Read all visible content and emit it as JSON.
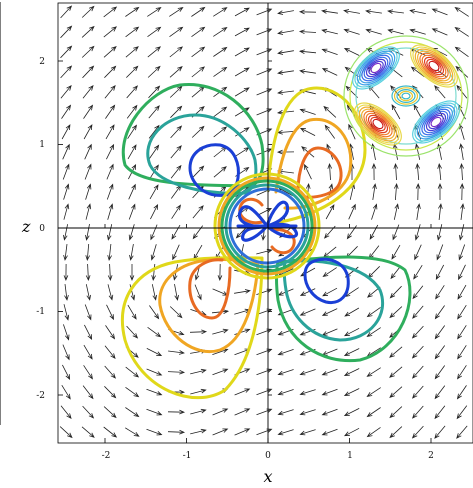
{
  "axes": {
    "x_label": "x",
    "z_label": "z",
    "x_ticks": [
      "-2",
      "-1",
      "0",
      "1",
      "2"
    ],
    "z_ticks": [
      "2",
      "1",
      "0",
      "-1",
      "-2"
    ]
  },
  "colors": {
    "background": "#ffffff",
    "arrow": "#222222",
    "axis": "#000000",
    "contour_levels": [
      "#1a3fd6",
      "#2f6fd9",
      "#2aa39a",
      "#2fae5d",
      "#e0d81a",
      "#f0a623",
      "#e86a22",
      "#d81d1d"
    ]
  },
  "icons": {
    "vector_field": "arrow-field-icon",
    "inset": "contour-inset-icon"
  }
}
